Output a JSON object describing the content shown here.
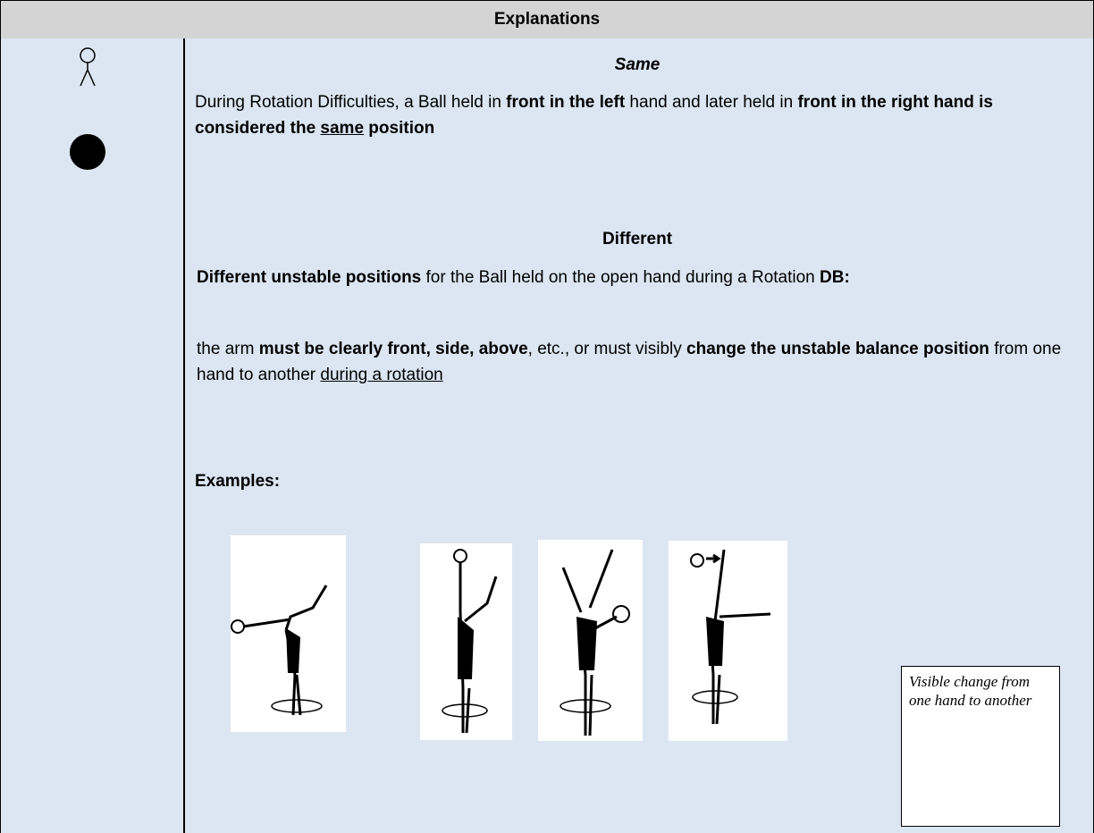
{
  "header": {
    "title": "Explanations"
  },
  "same": {
    "heading": "Same",
    "paragraph": [
      "During Rotation Difficulties, a Ball held in ",
      "front in the left",
      " hand and later held in ",
      "front in the right hand is considered the ",
      "same",
      " position"
    ]
  },
  "different": {
    "heading": "Different",
    "paragraphs": [
      [
        "Different unstable positions",
        " for the Ball held on the open hand during a Rotation ",
        "DB:"
      ],
      [
        "the arm ",
        "must be clearly front, side, above",
        ", etc., or must visibly ",
        "change the unstable balance position",
        " from one hand to another ",
        "during a rotation"
      ]
    ]
  },
  "examples": {
    "label": "Examples:",
    "note": "Visible change from one hand to another"
  }
}
